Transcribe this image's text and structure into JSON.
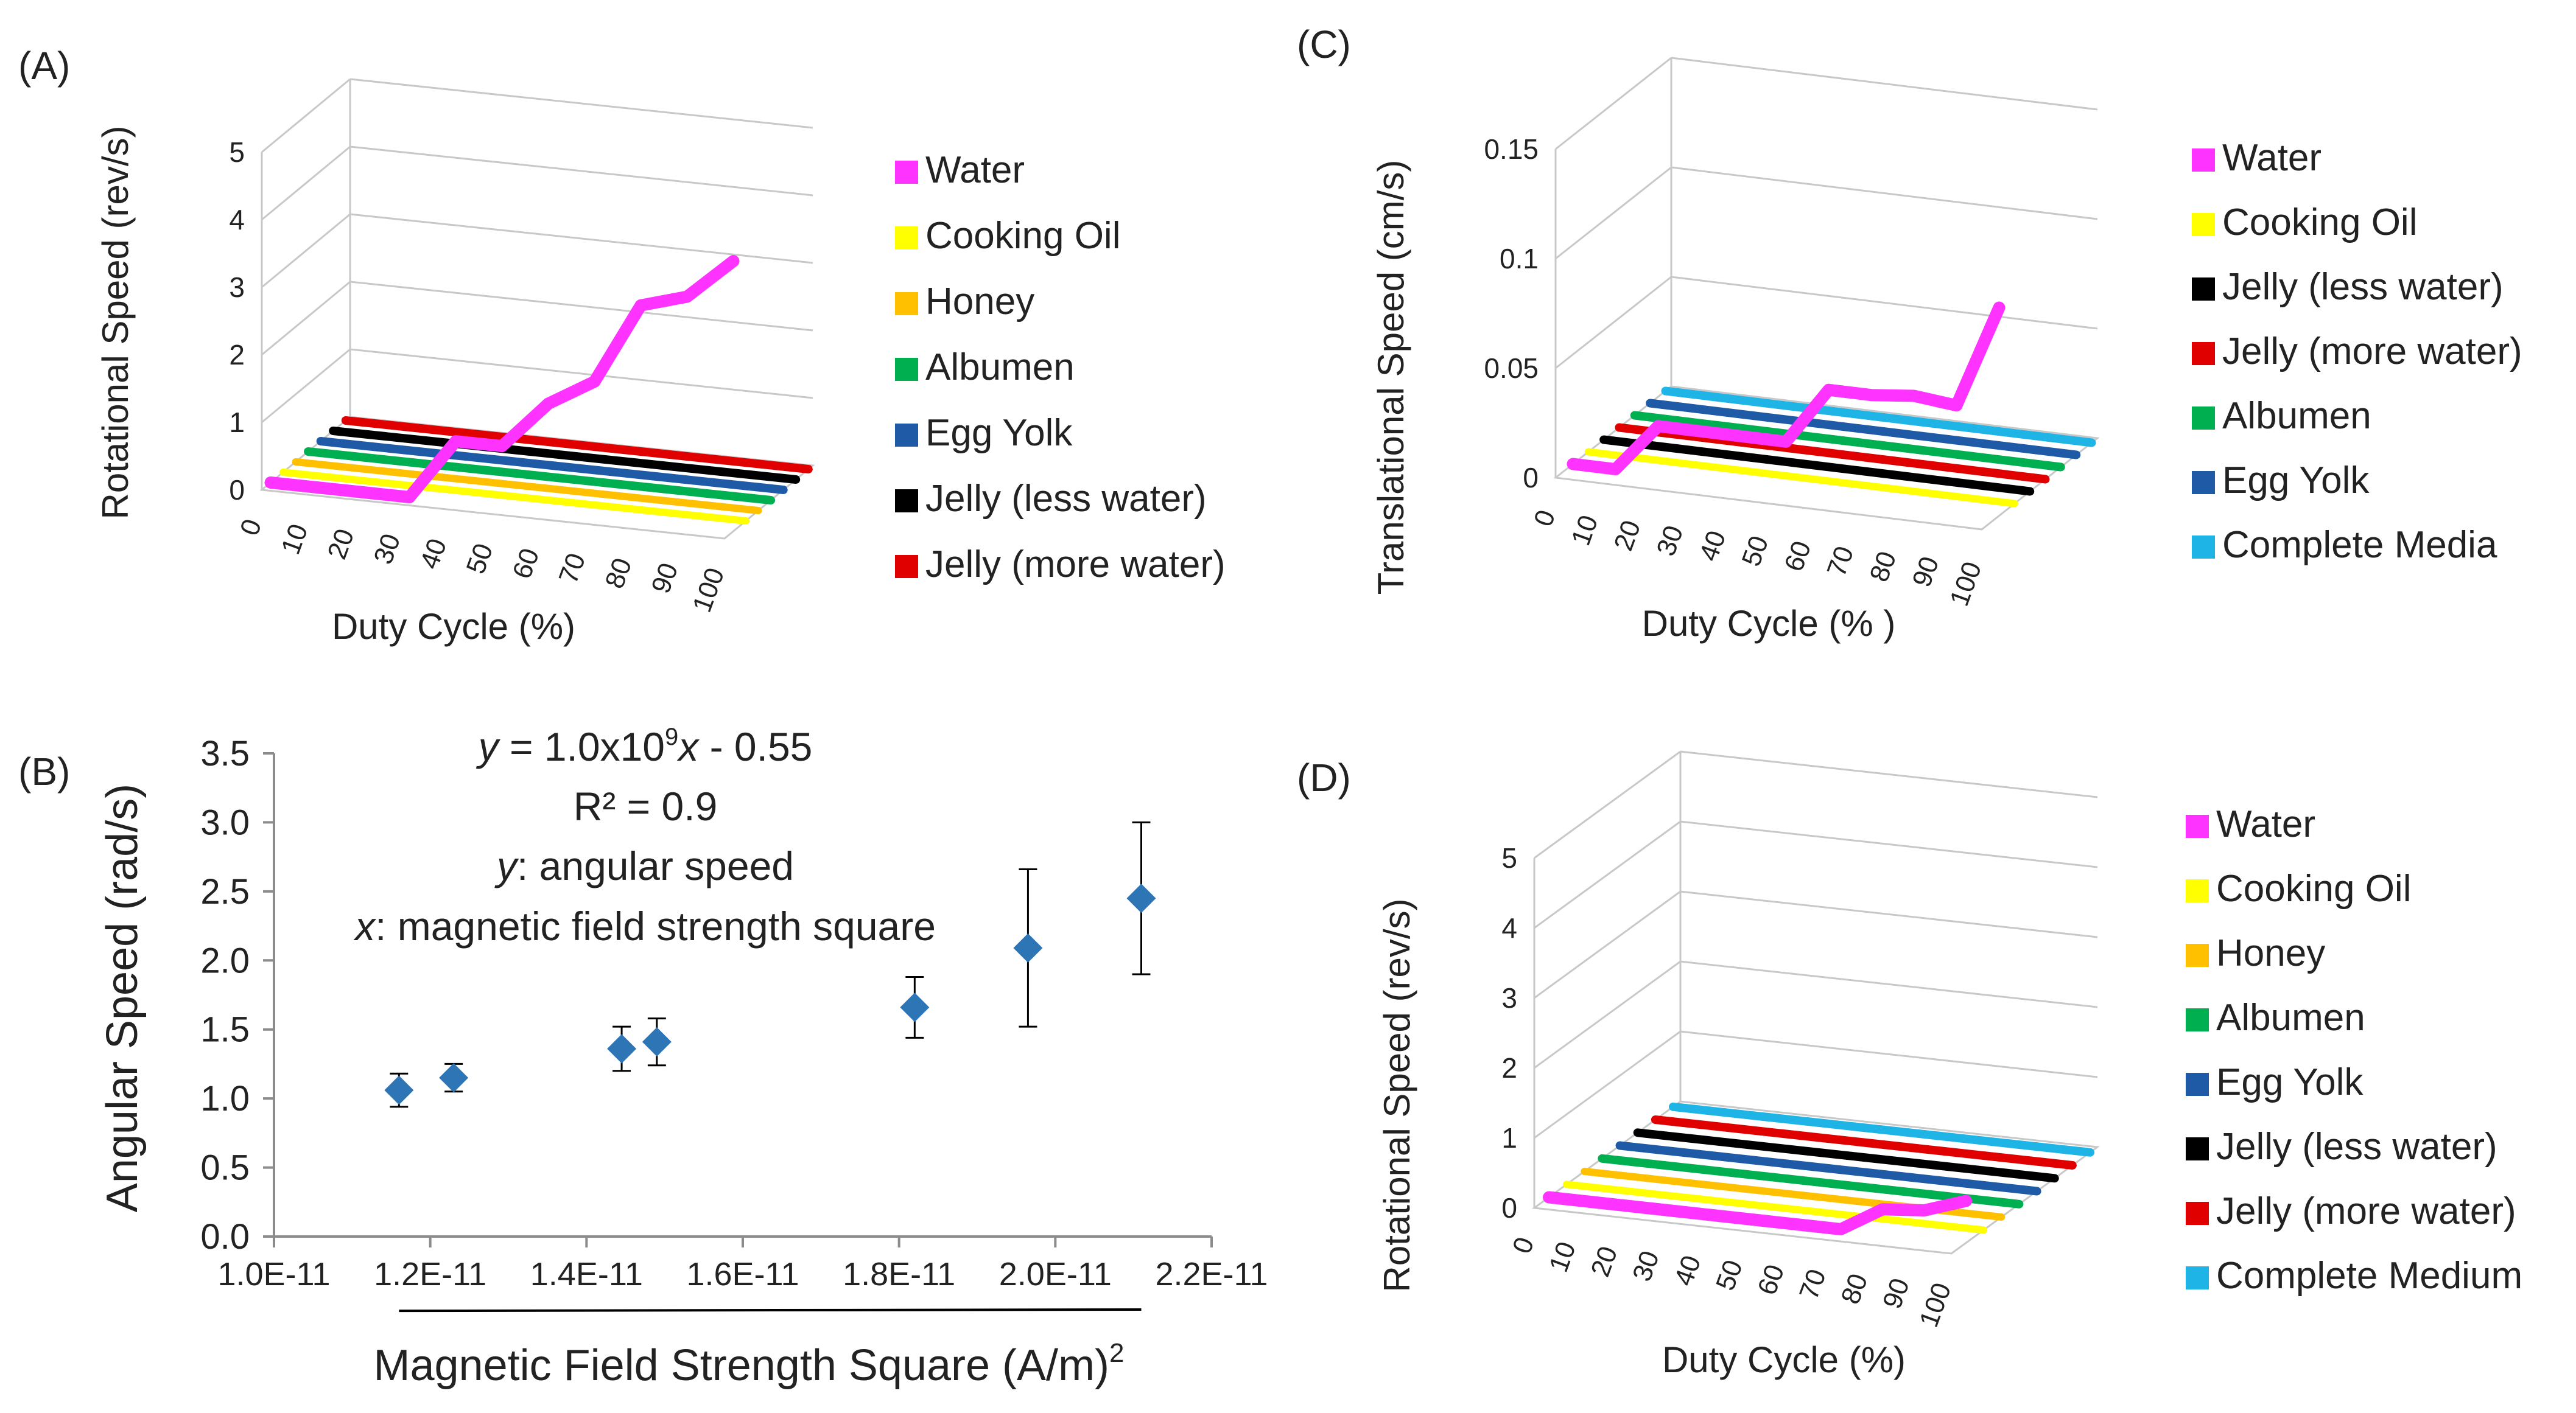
{
  "figure": {
    "panel_labels": [
      "(A)",
      "(B)",
      "(C)",
      "(D)"
    ]
  },
  "chart_data": [
    {
      "panel": "(A)",
      "type": "line",
      "style": "3d",
      "xlabel": "Duty Cycle (%)",
      "ylabel": "Rotational Speed (rev/s)",
      "x": [
        0,
        10,
        20,
        30,
        40,
        50,
        60,
        70,
        80,
        90,
        100
      ],
      "yticks": [
        0,
        1,
        2,
        3,
        4,
        5
      ],
      "ylim": [
        0,
        5
      ],
      "legend": "right",
      "series": [
        {
          "name": "Water",
          "color": "#ff33ff",
          "values": [
            0,
            0,
            0,
            0,
            0.9,
            0.9,
            1.6,
            2.0,
            3.2,
            3.4,
            4.0
          ]
        },
        {
          "name": "Cooking Oil",
          "color": "#ffff00",
          "values": [
            0,
            0,
            0,
            0,
            0,
            0,
            0,
            0,
            0,
            0,
            0
          ]
        },
        {
          "name": "Honey",
          "color": "#ffc000",
          "values": [
            0,
            0,
            0,
            0,
            0,
            0,
            0,
            0,
            0,
            0,
            0
          ]
        },
        {
          "name": "Albumen",
          "color": "#00b050",
          "values": [
            0,
            0,
            0,
            0,
            0,
            0,
            0,
            0,
            0,
            0,
            0
          ]
        },
        {
          "name": "Egg Yolk",
          "color": "#1f5aa6",
          "values": [
            0,
            0,
            0,
            0,
            0,
            0,
            0,
            0,
            0,
            0,
            0
          ]
        },
        {
          "name": "Jelly (less water)",
          "color": "#000000",
          "values": [
            0,
            0,
            0,
            0,
            0,
            0,
            0,
            0,
            0,
            0,
            0
          ]
        },
        {
          "name": "Jelly (more water)",
          "color": "#e00000",
          "values": [
            0,
            0,
            0,
            0,
            0,
            0,
            0,
            0,
            0,
            0,
            0
          ]
        }
      ]
    },
    {
      "panel": "(B)",
      "type": "scatter",
      "xlabel": "Magnetic Field Strength Square (A/m)",
      "xlabel_sup": "2",
      "ylabel": "Angular Speed (rad/s)",
      "xlim": [
        1e-11,
        2.2e-11
      ],
      "xticks": [
        1e-11,
        1.2e-11,
        1.4e-11,
        1.6e-11,
        1.8e-11,
        2e-11,
        2.2e-11
      ],
      "xtick_labels": [
        "1.0E-11",
        "1.2E-11",
        "1.4E-11",
        "1.6E-11",
        "1.8E-11",
        "2.0E-11",
        "2.2E-11"
      ],
      "ylim": [
        0,
        3.5
      ],
      "yticks": [
        0,
        0.5,
        1.0,
        1.5,
        2.0,
        2.5,
        3.0,
        3.5
      ],
      "ytick_labels": [
        "0.0",
        "0.5",
        "1.0",
        "1.5",
        "2.0",
        "2.5",
        "3.0",
        "3.5"
      ],
      "points": [
        {
          "x": 1.16e-11,
          "y": 1.06,
          "err": 0.12
        },
        {
          "x": 1.23e-11,
          "y": 1.15,
          "err": 0.1
        },
        {
          "x": 1.445e-11,
          "y": 1.36,
          "err": 0.16
        },
        {
          "x": 1.49e-11,
          "y": 1.41,
          "err": 0.17
        },
        {
          "x": 1.82e-11,
          "y": 1.66,
          "err": 0.22
        },
        {
          "x": 1.965e-11,
          "y": 2.09,
          "err": 0.57
        },
        {
          "x": 2.11e-11,
          "y": 2.45,
          "err": 0.55
        }
      ],
      "marker_color": "#2e75b6",
      "fit": {
        "slope": 1000000000.0,
        "intercept": -0.55,
        "x_range": [
          1.16e-11,
          2.11e-11
        ]
      },
      "annotations": {
        "equation_y": "y",
        "equation_rest": " = 1.0x10",
        "equation_exp": "9",
        "equation_x": "x",
        "equation_tail": " - 0.55",
        "r2": "R² = 0.9",
        "y_var": "y",
        "y_desc": ": angular  speed",
        "x_var": "x",
        "x_desc": ": magnetic  field  strength  square"
      }
    },
    {
      "panel": "(C)",
      "type": "line",
      "style": "3d",
      "xlabel": "Duty Cycle (% )",
      "ylabel": "Translational Speed (cm/s)",
      "x": [
        0,
        10,
        20,
        30,
        40,
        50,
        60,
        70,
        80,
        90,
        100
      ],
      "yticks": [
        0,
        0.05,
        0.1,
        0.15
      ],
      "ytick_labels": [
        "0",
        "0.05",
        "0.1",
        "0.15"
      ],
      "ylim": [
        0,
        0.15
      ],
      "legend": "right",
      "series": [
        {
          "name": "Water",
          "color": "#ff33ff",
          "values": [
            0,
            0,
            0.022,
            0.022,
            0.022,
            0.022,
            0.048,
            0.048,
            0.05,
            0.048,
            0.095
          ]
        },
        {
          "name": "Cooking Oil",
          "color": "#ffff00",
          "values": [
            0,
            0,
            0,
            0,
            0,
            0,
            0,
            0,
            0,
            0,
            0
          ]
        },
        {
          "name": "Jelly (less water)",
          "color": "#000000",
          "values": [
            0,
            0,
            0,
            0,
            0,
            0,
            0,
            0,
            0,
            0,
            0
          ]
        },
        {
          "name": "Jelly (more water)",
          "color": "#e00000",
          "values": [
            0,
            0,
            0,
            0,
            0,
            0,
            0,
            0,
            0,
            0,
            0
          ]
        },
        {
          "name": "Albumen",
          "color": "#00b050",
          "values": [
            0,
            0,
            0,
            0,
            0,
            0,
            0,
            0,
            0,
            0,
            0
          ]
        },
        {
          "name": "Egg Yolk",
          "color": "#1f5aa6",
          "values": [
            0,
            0,
            0,
            0,
            0,
            0,
            0,
            0,
            0,
            0,
            0
          ]
        },
        {
          "name": "Complete Media",
          "color": "#1fb4e6",
          "values": [
            0,
            0,
            0,
            0,
            0,
            0,
            0,
            0,
            0,
            0,
            0
          ]
        }
      ]
    },
    {
      "panel": "(D)",
      "type": "line",
      "style": "3d",
      "xlabel": "Duty Cycle (%)",
      "ylabel": "Rotational Speed (rev/s)",
      "x": [
        0,
        10,
        20,
        30,
        40,
        50,
        60,
        70,
        80,
        90,
        100
      ],
      "yticks": [
        0,
        1,
        2,
        3,
        4,
        5
      ],
      "ylim": [
        0,
        5
      ],
      "legend": "right",
      "series": [
        {
          "name": "Water",
          "color": "#ff33ff",
          "values": [
            0,
            0,
            0,
            0,
            0,
            0,
            0,
            0,
            0.35,
            0.4,
            0.6
          ]
        },
        {
          "name": "Cooking Oil",
          "color": "#ffff00",
          "values": [
            0,
            0,
            0,
            0,
            0,
            0,
            0,
            0,
            0,
            0,
            0
          ]
        },
        {
          "name": "Honey",
          "color": "#ffc000",
          "values": [
            0,
            0,
            0,
            0,
            0,
            0,
            0,
            0,
            0,
            0,
            0
          ]
        },
        {
          "name": "Albumen",
          "color": "#00b050",
          "values": [
            0,
            0,
            0,
            0,
            0,
            0,
            0,
            0,
            0,
            0,
            0
          ]
        },
        {
          "name": "Egg Yolk",
          "color": "#1f5aa6",
          "values": [
            0,
            0,
            0,
            0,
            0,
            0,
            0,
            0,
            0,
            0,
            0
          ]
        },
        {
          "name": "Jelly (less water)",
          "color": "#000000",
          "values": [
            0,
            0,
            0,
            0,
            0,
            0,
            0,
            0,
            0,
            0,
            0
          ]
        },
        {
          "name": "Jelly (more water)",
          "color": "#e00000",
          "values": [
            0,
            0,
            0,
            0,
            0,
            0,
            0,
            0,
            0,
            0,
            0
          ]
        },
        {
          "name": "Complete Medium",
          "color": "#1fb4e6",
          "values": [
            0,
            0,
            0,
            0,
            0,
            0,
            0,
            0,
            0,
            0,
            0
          ]
        }
      ]
    }
  ]
}
